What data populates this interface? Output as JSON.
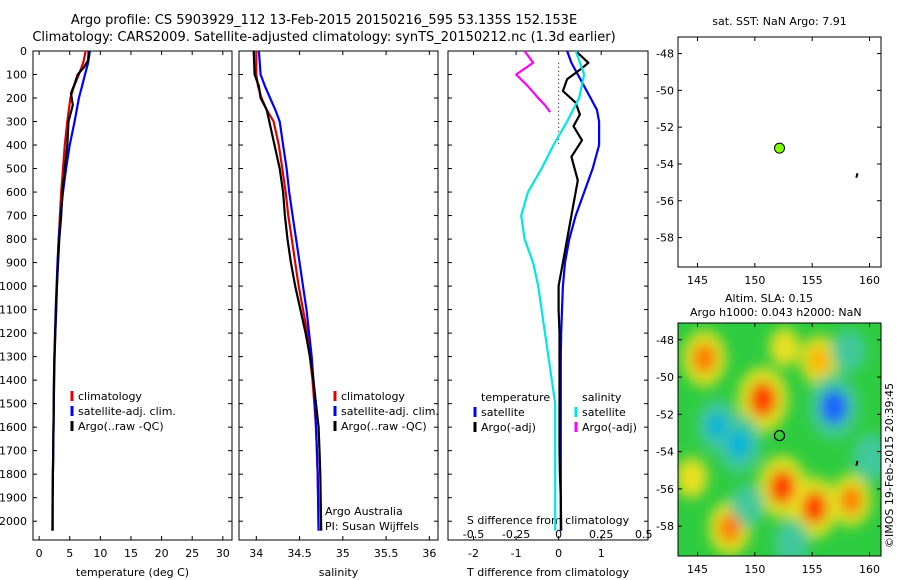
{
  "title": {
    "line1": "Argo profile: CS 5903929_112 13-Feb-2015 20150216_595 53.135S 152.153E",
    "line2": "Climatology: CARS2009. Satellite-adjusted climatology: synTS_20150212.nc (1.3d earlier)"
  },
  "colors": {
    "climatology": "#e00000",
    "satellite": "#0000ff",
    "argo": "#000000",
    "sal_satellite": "#00e5e5",
    "sal_argo": "#ff00ff",
    "marker": "#80ff00"
  },
  "depth_axis": {
    "ticks": [
      "0",
      "100",
      "200",
      "300",
      "400",
      "500",
      "600",
      "700",
      "800",
      "900",
      "1000",
      "1100",
      "1200",
      "1300",
      "1400",
      "1500",
      "1600",
      "1700",
      "1800",
      "1900",
      "2000"
    ]
  },
  "chart_data": [
    {
      "type": "line",
      "name": "temperature-panel",
      "xlabel": "temperature (deg C)",
      "xlim": [
        -1,
        31.5
      ],
      "ylim": [
        2080,
        0
      ],
      "xticks": [
        "0",
        "5",
        "10",
        "15",
        "20",
        "25",
        "30"
      ],
      "legend": {
        "placement": "bottom-center",
        "entries": [
          "climatology",
          "satellite-adj. clim.",
          "Argo(..raw -QC)"
        ]
      },
      "series": [
        {
          "name": "climatology",
          "color": "#e00000",
          "x": [
            7.6,
            7.2,
            6.5,
            5.7,
            5.1,
            4.6,
            4.2,
            3.9,
            3.6,
            3.4,
            3.2,
            3.05,
            2.9,
            2.8,
            2.65,
            2.55,
            2.45,
            2.4,
            2.35,
            2.3,
            2.25,
            2.2,
            2.15
          ],
          "y": [
            0,
            50,
            100,
            150,
            200,
            300,
            400,
            500,
            600,
            700,
            800,
            900,
            1000,
            1100,
            1200,
            1300,
            1400,
            1500,
            1600,
            1700,
            1800,
            1900,
            2040
          ]
        },
        {
          "name": "satellite-adj. clim.",
          "color": "#0000ff",
          "x": [
            8.3,
            8.0,
            7.5,
            7.0,
            6.5,
            5.8,
            5.0,
            4.4,
            3.9,
            3.5,
            3.2,
            3.0,
            2.85,
            2.7,
            2.6,
            2.5,
            2.45,
            2.4,
            2.35,
            2.3,
            2.25,
            2.2,
            2.2
          ],
          "y": [
            0,
            50,
            100,
            150,
            200,
            300,
            400,
            500,
            600,
            700,
            800,
            900,
            1000,
            1100,
            1200,
            1300,
            1400,
            1500,
            1600,
            1700,
            1800,
            1900,
            2040
          ]
        },
        {
          "name": "Argo(..raw -QC)",
          "color": "#000000",
          "x": [
            8.1,
            8.0,
            7.3,
            6.3,
            5.8,
            5.2,
            5.5,
            4.8,
            4.6,
            4.2,
            3.8,
            3.6,
            3.3,
            3.1,
            2.9,
            2.75,
            2.65,
            2.5,
            2.42,
            2.38,
            2.34,
            2.3,
            2.25,
            2.2,
            2.2
          ],
          "y": [
            0,
            40,
            70,
            100,
            140,
            180,
            230,
            300,
            400,
            500,
            600,
            700,
            800,
            900,
            1000,
            1100,
            1200,
            1300,
            1400,
            1500,
            1600,
            1700,
            1800,
            1900,
            2040
          ]
        }
      ]
    },
    {
      "type": "line",
      "name": "salinity-panel",
      "xlabel": "salinity",
      "xlim": [
        33.8,
        36.1
      ],
      "ylim": [
        2080,
        0
      ],
      "xticks": [
        "34",
        "34.5",
        "35",
        "35.5",
        "36"
      ],
      "legend": {
        "placement": "bottom-right",
        "entries": [
          "climatology",
          "satellite-adj. clim.",
          "Argo(..raw -QC)"
        ]
      },
      "annotations": [
        "Argo Australia",
        "PI: Susan Wijffels"
      ],
      "series": [
        {
          "name": "climatology",
          "color": "#e00000",
          "x": [
            34.0,
            34.0,
            34.02,
            34.06,
            34.12,
            34.2,
            34.26,
            34.3,
            34.34,
            34.37,
            34.41,
            34.45,
            34.49,
            34.54,
            34.59,
            34.62,
            34.65,
            34.67,
            34.69,
            34.7,
            34.71,
            34.72
          ],
          "y": [
            0,
            100,
            150,
            200,
            250,
            300,
            400,
            500,
            600,
            700,
            800,
            900,
            1000,
            1100,
            1200,
            1300,
            1400,
            1500,
            1600,
            1700,
            1800,
            2040
          ]
        },
        {
          "name": "satellite-adj. clim.",
          "color": "#0000ff",
          "x": [
            34.03,
            34.05,
            34.1,
            34.16,
            34.22,
            34.27,
            34.31,
            34.35,
            34.38,
            34.42,
            34.46,
            34.5,
            34.54,
            34.58,
            34.61,
            34.64,
            34.66,
            34.68,
            34.69,
            34.7,
            34.71,
            34.72
          ],
          "y": [
            0,
            100,
            150,
            200,
            250,
            300,
            400,
            500,
            600,
            700,
            800,
            900,
            1000,
            1100,
            1200,
            1300,
            1400,
            1500,
            1600,
            1700,
            1800,
            2040
          ]
        },
        {
          "name": "Argo(..raw -QC)",
          "color": "#000000",
          "x": [
            33.97,
            33.98,
            34.03,
            34.05,
            34.12,
            34.15,
            34.21,
            34.27,
            34.31,
            34.33,
            34.36,
            34.4,
            34.45,
            34.51,
            34.57,
            34.62,
            34.66,
            34.69,
            34.72,
            34.73,
            34.74,
            34.75
          ],
          "y": [
            0,
            100,
            150,
            200,
            250,
            300,
            400,
            500,
            600,
            700,
            800,
            900,
            1000,
            1100,
            1200,
            1300,
            1400,
            1500,
            1600,
            1700,
            1800,
            2040
          ]
        }
      ]
    },
    {
      "type": "line",
      "name": "difference-panel",
      "xlabel_bottom": "T difference from climatology",
      "xlabel_top": "S difference from climatology",
      "xlim": [
        -2.6,
        2.1
      ],
      "ylim": [
        2080,
        0
      ],
      "xticks_bottom": [
        "-2",
        "-1",
        "0",
        "1"
      ],
      "xticks_top": [
        "-0.5",
        "-0.25",
        "0",
        "0.25",
        "0.5"
      ],
      "legend": {
        "placement": "bottom",
        "temperature_header": "temperature",
        "salinity_header": "salinity",
        "entries": [
          "satellite",
          "Argo(-adj)",
          "satellite",
          "Argo(-adj)"
        ]
      },
      "series": [
        {
          "name": "temperature satellite",
          "color": "#0000ff",
          "x": [
            0.2,
            0.3,
            0.45,
            0.6,
            0.75,
            0.9,
            0.95,
            0.95,
            0.8,
            0.6,
            0.4,
            0.25,
            0.15,
            0.1,
            0.08,
            0.06,
            0.05,
            0.05,
            0.05,
            0.05,
            0.05,
            0.05,
            0.05,
            0.05
          ],
          "y": [
            0,
            50,
            100,
            150,
            200,
            250,
            300,
            400,
            500,
            600,
            700,
            800,
            900,
            1000,
            1100,
            1200,
            1300,
            1400,
            1500,
            1600,
            1700,
            1800,
            1900,
            2040
          ]
        },
        {
          "name": "temperature Argo(-adj)",
          "color": "#000000",
          "x": [
            0.4,
            0.7,
            0.5,
            0.2,
            0.1,
            0.4,
            0.5,
            0.35,
            0.55,
            0.3,
            0.45,
            0.3,
            0.1,
            0.0,
            0.0,
            0.02,
            0.02,
            0.02,
            0.02,
            0.02,
            0.02,
            0.03,
            0.05,
            0.06
          ],
          "y": [
            0,
            50,
            80,
            120,
            170,
            220,
            270,
            320,
            380,
            450,
            550,
            700,
            900,
            1000,
            1100,
            1200,
            1300,
            1400,
            1500,
            1600,
            1700,
            1800,
            1900,
            2040
          ]
        },
        {
          "name": "salinity satellite",
          "color": "#00e5e5",
          "x": [
            0.1,
            0.15,
            0.12,
            0.05,
            -0.03,
            -0.1,
            -0.18,
            -0.22,
            -0.2,
            -0.15,
            -0.12,
            -0.1,
            -0.08,
            -0.06,
            -0.04,
            -0.02,
            -0.02,
            -0.02
          ],
          "y": [
            0,
            100,
            200,
            300,
            400,
            500,
            600,
            700,
            800,
            900,
            1000,
            1100,
            1200,
            1300,
            1400,
            1500,
            1800,
            2040
          ]
        },
        {
          "name": "salinity Argo(-adj)",
          "color": "#ff00ff",
          "x": [
            -0.2,
            -0.15,
            -0.25,
            -0.18,
            -0.12,
            -0.08,
            -0.05
          ],
          "y": [
            0,
            50,
            100,
            150,
            200,
            230,
            260
          ]
        }
      ]
    },
    {
      "type": "scatter",
      "name": "sst-map",
      "title": "sat. SST: NaN Argo: 7.91",
      "xlim": [
        143.3,
        161
      ],
      "ylim": [
        -59.6,
        -47.1
      ],
      "xticks": [
        "145",
        "150",
        "155",
        "160"
      ],
      "yticks": [
        "-48",
        "-50",
        "-52",
        "-54",
        "-56",
        "-58"
      ],
      "points": [
        {
          "lon": 152.15,
          "lat": -53.14,
          "color": "#80ff00"
        }
      ],
      "track": {
        "lon": [
          158.95,
          158.85
        ],
        "lat": [
          -54.5,
          -54.75
        ]
      }
    },
    {
      "type": "heatmap",
      "name": "sla-map",
      "title_line1": "Altim. SLA: 0.15",
      "title_line2": "Argo h1000: 0.043 h2000: NaN",
      "xlim": [
        143.3,
        161
      ],
      "ylim": [
        -59.6,
        -47.1
      ],
      "xticks": [
        "145",
        "150",
        "155",
        "160"
      ],
      "yticks": [
        "-48",
        "-50",
        "-52",
        "-54",
        "-56",
        "-58"
      ],
      "argo_position": {
        "lon": 152.15,
        "lat": -53.14
      },
      "track": {
        "lon": [
          158.95,
          158.85
        ],
        "lat": [
          -54.5,
          -54.75
        ]
      },
      "field_colors": [
        "#00b4d8",
        "#43c8a0",
        "#2ecc40",
        "#7ee82c",
        "#c8e82c",
        "#f0e020",
        "#ffb400",
        "#ff7a00",
        "#ff3c00",
        "#1e64ff"
      ],
      "anomalies": [
        {
          "lon": 150.7,
          "lat": -51.2,
          "value": 0.9
        },
        {
          "lon": 152.4,
          "lat": -55.9,
          "value": 0.85
        },
        {
          "lon": 155.2,
          "lat": -57.0,
          "value": 0.8
        },
        {
          "lon": 145.6,
          "lat": -49.0,
          "value": 0.7
        },
        {
          "lon": 147.8,
          "lat": -58.1,
          "value": 0.65
        },
        {
          "lon": 158.4,
          "lat": -56.6,
          "value": 0.6
        },
        {
          "lon": 155.6,
          "lat": -49.1,
          "value": 0.55
        },
        {
          "lon": 148.6,
          "lat": -53.6,
          "value": -0.75
        },
        {
          "lon": 146.7,
          "lat": -52.6,
          "value": -0.6
        },
        {
          "lon": 156.9,
          "lat": -51.6,
          "value": -0.9
        },
        {
          "lon": 160.1,
          "lat": -54.3,
          "value": -0.5
        },
        {
          "lon": 153.2,
          "lat": -58.9,
          "value": -0.45
        },
        {
          "lon": 149.3,
          "lat": -56.9,
          "value": -0.4
        },
        {
          "lon": 158.2,
          "lat": -48.6,
          "value": -0.4
        },
        {
          "lon": 144.5,
          "lat": -55.4,
          "value": 0.35
        },
        {
          "lon": 152.6,
          "lat": -48.4,
          "value": 0.3
        }
      ]
    }
  ],
  "side_label": "©IMOS 19-Feb-2015 20:39:45"
}
